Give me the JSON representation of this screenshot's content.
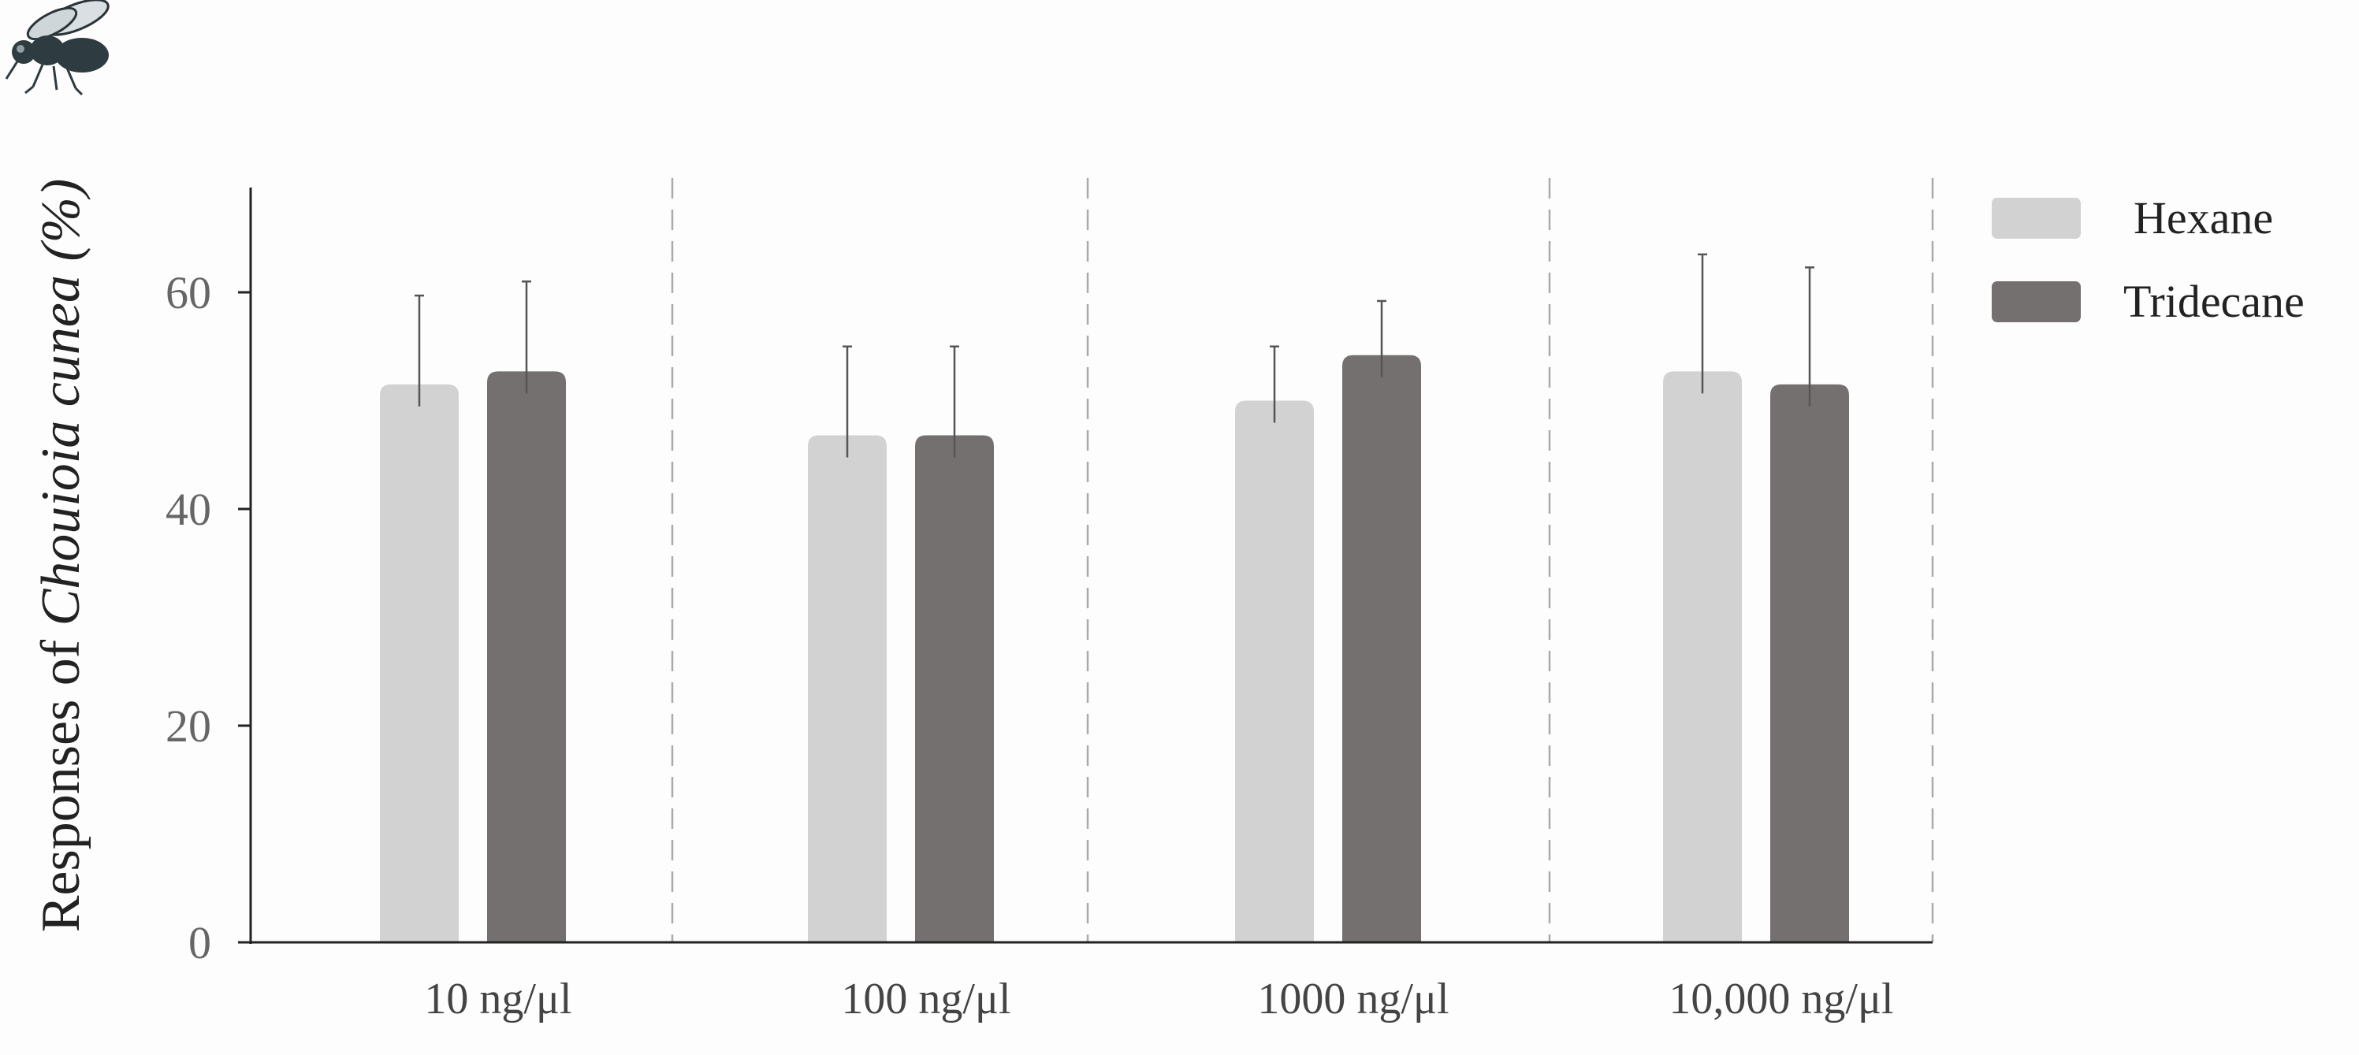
{
  "chart_data": {
    "type": "bar",
    "title": "",
    "xlabel": "",
    "ylabel": {
      "prefix": "Responses of ",
      "species": "Chouioia cunea",
      "suffix": " (%)"
    },
    "ylim": [
      0,
      70
    ],
    "yticks": [
      0,
      20,
      40,
      60
    ],
    "categories": [
      "10 ng/μl",
      "100 ng/μl",
      "1000 ng/μl",
      "10,000 ng/μl"
    ],
    "series": [
      {
        "name": "Hexane",
        "color": "#d3d2d2",
        "values": [
          51.5,
          46.8,
          50,
          52.7
        ],
        "errors": [
          8.2,
          8.2,
          5,
          10.8
        ]
      },
      {
        "name": "Tridecane",
        "color": "#747070",
        "values": [
          52.7,
          46.8,
          54.2,
          51.5
        ],
        "errors": [
          8.3,
          8.2,
          5,
          10.8
        ]
      }
    ],
    "grid": false,
    "group_separators": "dashed",
    "legend_position": "top-right"
  },
  "decoration": {
    "icon": "fly-icon"
  }
}
